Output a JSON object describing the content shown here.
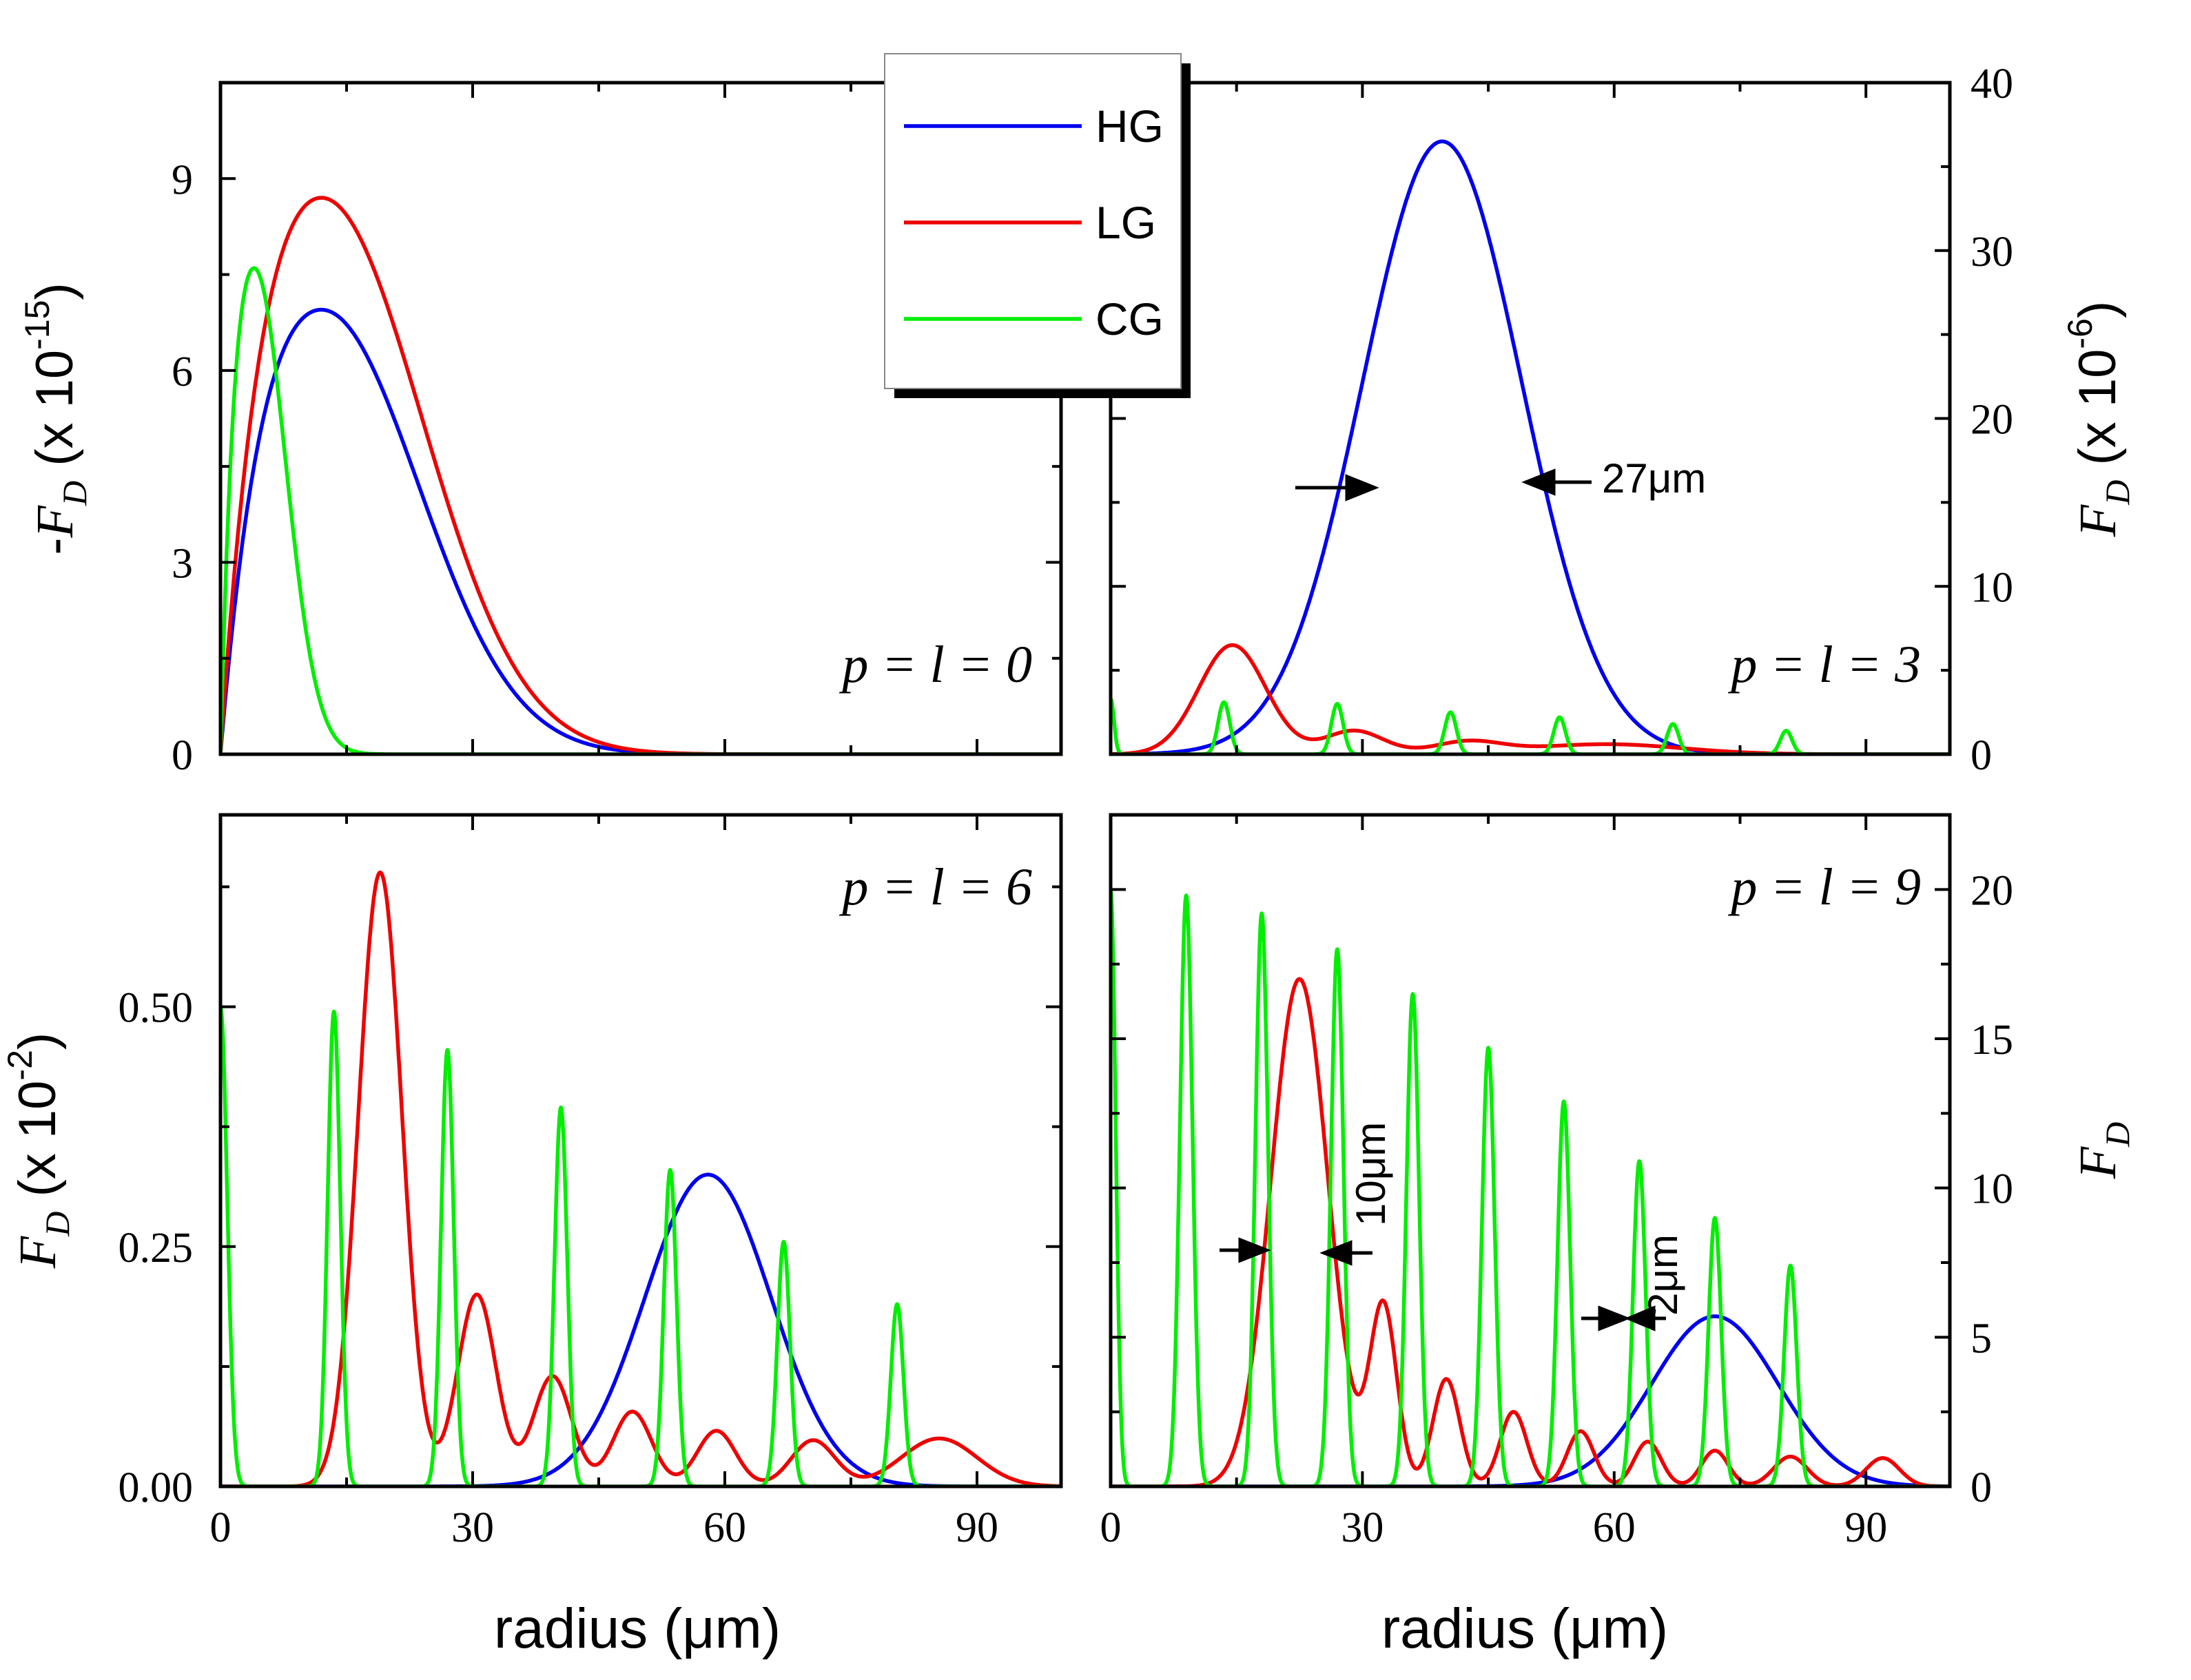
{
  "colors": {
    "HG": "#0000ee",
    "LG": "#ee0000",
    "CG": "#00ee00"
  },
  "legend": {
    "entries": [
      "HG",
      "LG",
      "CG"
    ]
  },
  "xlabel": "radius (μm)",
  "chart_data": [
    {
      "id": "top-left",
      "type": "line",
      "annotation": "p = l = 0",
      "xlim": [
        0,
        100
      ],
      "ylim": [
        0,
        10.5
      ],
      "xticks": [],
      "yticks": [
        "0",
        "3",
        "6",
        "9"
      ],
      "ylabel": {
        "prefix": "-",
        "var": "F",
        "sub": "D",
        "text": " (x 10",
        "exp": "-15",
        "close": ")"
      },
      "series": [
        {
          "name": "HG",
          "kind": "g",
          "peaks": [
            [
              12,
              6.95,
              15.5
            ]
          ],
          "decay": 0.7,
          "note": "peak ≈ 6.95 at r ≈ 12 μm"
        },
        {
          "name": "LG",
          "kind": "g",
          "peaks": [
            [
              12,
              8.7,
              16
            ]
          ],
          "decay": 0.7,
          "note": "peak ≈ 8.7 at r ≈ 12 μm"
        },
        {
          "name": "CG",
          "kind": "g",
          "peaks": [
            [
              4,
              7.6,
              5
            ]
          ],
          "decay": 0.9,
          "note": "peak ≈ 7.6 at r ≈ 4 μm"
        }
      ]
    },
    {
      "id": "top-right",
      "type": "line",
      "annotation": "p = l = 3",
      "xlim": [
        0,
        100
      ],
      "ylim": [
        0,
        40
      ],
      "xticks": [],
      "yticks": [
        "0",
        "10",
        "20",
        "30",
        "40"
      ],
      "ylabel": {
        "prefix": "",
        "var": "F",
        "sub": "D",
        "text": " (x 10",
        "exp": "-6",
        "close": ")"
      },
      "annotations": [
        {
          "text": "27μm"
        }
      ],
      "series": [
        {
          "name": "HG",
          "kind": "g",
          "peaks": [
            [
              39.5,
              36.5,
              9.5
            ]
          ],
          "note": "peak ≈ 36.5 at r ≈ 39.5 μm, FWHM 27 μm"
        },
        {
          "name": "LG",
          "kind": "g",
          "peaks": [
            [
              14.5,
              6.5,
              4
            ],
            [
              29,
              1.4,
              3.5
            ],
            [
              42.5,
              0.7,
              4
            ],
            [
              59,
              0.6,
              9
            ]
          ]
        },
        {
          "name": "CG",
          "kind": "g",
          "peaks": [
            [
              0,
              3.3,
              0.4
            ],
            [
              13.5,
              3.1,
              0.7
            ],
            [
              27,
              3.0,
              0.7
            ],
            [
              40.5,
              2.5,
              0.7
            ],
            [
              53.5,
              2.2,
              0.7
            ],
            [
              67,
              1.8,
              0.7
            ],
            [
              80.5,
              1.4,
              0.7
            ]
          ]
        }
      ]
    },
    {
      "id": "bottom-left",
      "type": "line",
      "annotation": "p = l = 6",
      "xlim": [
        0,
        100
      ],
      "ylim": [
        0,
        0.7
      ],
      "xticks": [
        "0",
        "30",
        "60",
        "90"
      ],
      "yticks": [
        "0.00",
        "0.25",
        "0.50"
      ],
      "ylabel": {
        "prefix": "",
        "var": "F",
        "sub": "D",
        "text": " (x 10",
        "exp": "-2",
        "close": ")"
      },
      "series": [
        {
          "name": "HG",
          "kind": "g",
          "peaks": [
            [
              58,
              0.325,
              7.5
            ]
          ]
        },
        {
          "name": "LG",
          "kind": "g",
          "peaks": [
            [
              19,
              0.64,
              2.6
            ],
            [
              30.5,
              0.2,
              2.3
            ],
            [
              39.5,
              0.115,
              2.3
            ],
            [
              49,
              0.078,
              2.3
            ],
            [
              59,
              0.058,
              2.3
            ],
            [
              70.5,
              0.048,
              2.6
            ],
            [
              85.5,
              0.05,
              4.5
            ]
          ]
        },
        {
          "name": "CG",
          "kind": "g",
          "peaks": [
            [
              0,
              0.5,
              0.8
            ],
            [
              13.5,
              0.495,
              0.75
            ],
            [
              27,
              0.455,
              0.75
            ],
            [
              40.5,
              0.395,
              0.75
            ],
            [
              53.5,
              0.33,
              0.75
            ],
            [
              67,
              0.255,
              0.75
            ],
            [
              80.5,
              0.19,
              0.75
            ]
          ]
        }
      ]
    },
    {
      "id": "bottom-right",
      "type": "line",
      "annotation": "p = l = 9",
      "xlim": [
        0,
        100
      ],
      "ylim": [
        0,
        22.5
      ],
      "xticks": [
        "0",
        "30",
        "60",
        "90"
      ],
      "yticks": [
        "0",
        "5",
        "10",
        "15",
        "20"
      ],
      "ylabel": {
        "prefix": "",
        "var": "F",
        "sub": "D",
        "text": "",
        "exp": "",
        "close": ""
      },
      "annotations": [
        {
          "text": "10μm"
        },
        {
          "text": "2μm"
        }
      ],
      "series": [
        {
          "name": "HG",
          "kind": "g",
          "peaks": [
            [
              72,
              5.7,
              7.5
            ]
          ]
        },
        {
          "name": "LG",
          "kind": "g",
          "peaks": [
            [
              22.5,
              17,
              3.4
            ],
            [
              32.5,
              6,
              1.6
            ],
            [
              40,
              3.6,
              1.6
            ],
            [
              48,
              2.5,
              1.6
            ],
            [
              56,
              1.85,
              1.6
            ],
            [
              64,
              1.5,
              1.6
            ],
            [
              72,
              1.2,
              1.6
            ],
            [
              81,
              1.0,
              2
            ],
            [
              92,
              0.95,
              2
            ]
          ]
        },
        {
          "name": "CG",
          "kind": "g",
          "peaks": [
            [
              0,
              20,
              0.6
            ],
            [
              9,
              19.8,
              0.75
            ],
            [
              18,
              19.2,
              0.75
            ],
            [
              27,
              18,
              0.75
            ],
            [
              36,
              16.5,
              0.75
            ],
            [
              45,
              14.7,
              0.75
            ],
            [
              54,
              12.9,
              0.75
            ],
            [
              63,
              10.9,
              0.75
            ],
            [
              72,
              9.0,
              0.75
            ],
            [
              81,
              7.4,
              0.75
            ]
          ]
        }
      ]
    }
  ]
}
